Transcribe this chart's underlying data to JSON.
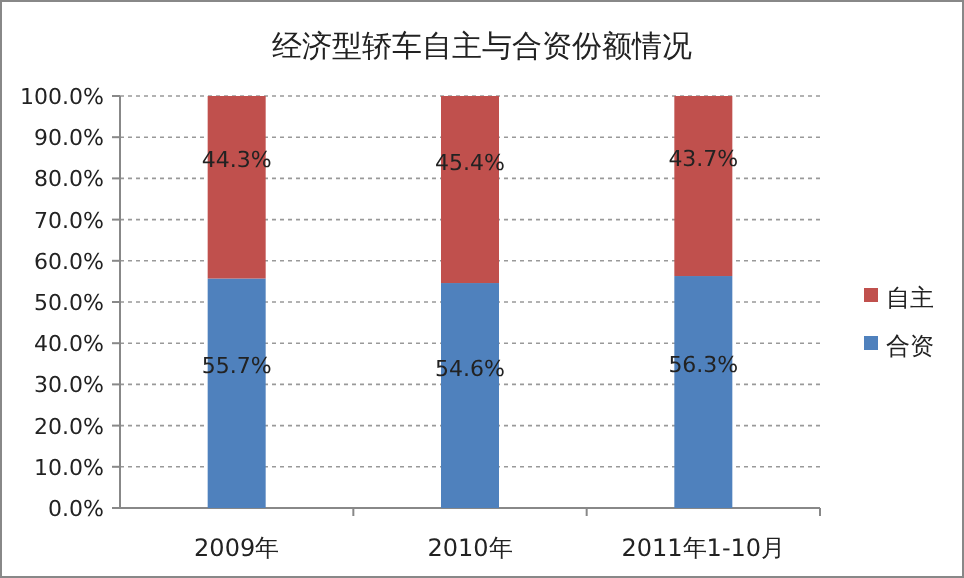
{
  "chart_data": {
    "type": "bar",
    "title": "经济型轿车自主与合资份额情况",
    "categories": [
      "2009年",
      "2010年",
      "2011年1-10月"
    ],
    "stacked": true,
    "grid": "y",
    "legend": "right",
    "ylim": [
      0,
      100
    ],
    "yticks": [
      {
        "value": 0,
        "label": "0.0%"
      },
      {
        "value": 10,
        "label": "10.0%"
      },
      {
        "value": 20,
        "label": "20.0%"
      },
      {
        "value": 30,
        "label": "30.0%"
      },
      {
        "value": 40,
        "label": "40.0%"
      },
      {
        "value": 50,
        "label": "50.0%"
      },
      {
        "value": 60,
        "label": "60.0%"
      },
      {
        "value": 70,
        "label": "70.0%"
      },
      {
        "value": 80,
        "label": "80.0%"
      },
      {
        "value": 90,
        "label": "90.0%"
      },
      {
        "value": 100,
        "label": "100.0%"
      }
    ],
    "series": [
      {
        "name": "合资",
        "color": "#4f81bd",
        "values": [
          55.7,
          54.6,
          56.3
        ],
        "value_labels": [
          "55.7%",
          "54.6%",
          "56.3%"
        ]
      },
      {
        "name": "自主",
        "color": "#c0504d",
        "values": [
          44.3,
          45.4,
          43.7
        ],
        "value_labels": [
          "44.3%",
          "45.4%",
          "43.7%"
        ]
      }
    ]
  }
}
